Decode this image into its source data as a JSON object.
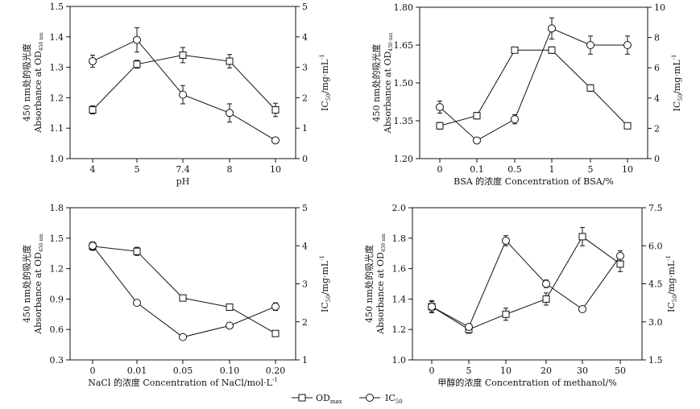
{
  "legend": {
    "od_label": "OD",
    "od_sub": "max",
    "ic_label": "IC",
    "ic_sub": "50"
  },
  "chart_data": [
    {
      "type": "line",
      "xlabel": "pH",
      "ylabel_cn": "450 nm处的吸光度",
      "ylabel_en": "Absorbance at OD",
      "ylabel_en_sub": "450 nm",
      "y2label": "IC",
      "y2label_sub": "50",
      "y2label_tail": "/mg·mL",
      "y2label_sup": "-1",
      "categories": [
        "4",
        "5",
        "7.4",
        "8",
        "10"
      ],
      "ylim": [
        1.0,
        1.5
      ],
      "yticks": [
        "1.0",
        "1.1",
        "1.2",
        "1.3",
        "1.4",
        "1.5"
      ],
      "y2lim": [
        0,
        5
      ],
      "y2ticks": [
        "0",
        "1",
        "2",
        "3",
        "4",
        "5"
      ],
      "series": [
        {
          "axis": "left",
          "marker": "square",
          "values": [
            1.16,
            1.31,
            1.34,
            1.32,
            1.16
          ],
          "err": [
            0.013,
            0.013,
            0.025,
            0.022,
            0.022
          ]
        },
        {
          "axis": "right",
          "marker": "circle",
          "values": [
            3.2,
            3.9,
            2.1,
            1.5,
            0.6
          ],
          "err": [
            0.2,
            0.4,
            0.3,
            0.3,
            0
          ]
        }
      ]
    },
    {
      "type": "line",
      "xlabel": "BSA 的浓度 Concentration of BSA/%",
      "ylabel_cn": "450 nm处的吸光度",
      "ylabel_en": "Absorbance at OD",
      "ylabel_en_sub": "450 nm",
      "y2label": "IC",
      "y2label_sub": "50",
      "y2label_tail": "/mg·mL",
      "y2label_sup": "-1",
      "categories": [
        "0",
        "0.1",
        "0.5",
        "1",
        "5",
        "10"
      ],
      "ylim": [
        1.2,
        1.8
      ],
      "yticks": [
        "1.20",
        "1.35",
        "1.50",
        "1.65",
        "1.80"
      ],
      "y2lim": [
        0,
        10
      ],
      "y2ticks": [
        "0",
        "2",
        "4",
        "6",
        "8",
        "10"
      ],
      "series": [
        {
          "axis": "left",
          "marker": "square",
          "values": [
            1.33,
            1.37,
            1.63,
            1.63,
            1.48,
            1.33
          ],
          "err": [
            0.013,
            0.013,
            0,
            0.013,
            0.013,
            0
          ]
        },
        {
          "axis": "right",
          "marker": "circle",
          "values": [
            3.4,
            1.2,
            2.6,
            8.6,
            7.5,
            7.5
          ],
          "err": [
            0.4,
            0,
            0.3,
            0.7,
            0.6,
            0.6
          ]
        }
      ]
    },
    {
      "type": "line",
      "xlabel": "NaCl 的浓度 Concentration of NaCl/mol·L",
      "xlabel_sup": "-1",
      "ylabel_cn": "450 nm处的吸光度",
      "ylabel_en": "Absorbance at OD",
      "ylabel_en_sub": "450 nm",
      "y2label": "IC",
      "y2label_sub": "50",
      "y2label_tail": "/mg·mL",
      "y2label_sup": "-1",
      "categories": [
        "0",
        "0.01",
        "0.05",
        "0.10",
        "0.20"
      ],
      "ylim": [
        0.3,
        1.8
      ],
      "yticks": [
        "0.3",
        "0.6",
        "0.9",
        "1.2",
        "1.5",
        "1.8"
      ],
      "y2lim": [
        1,
        5
      ],
      "y2ticks": [
        "1",
        "2",
        "3",
        "4",
        "5"
      ],
      "series": [
        {
          "axis": "left",
          "marker": "square",
          "values": [
            1.42,
            1.37,
            0.91,
            0.82,
            0.56
          ],
          "err": [
            0.04,
            0.04,
            0.03,
            0,
            0
          ]
        },
        {
          "axis": "right",
          "marker": "circle",
          "values": [
            4.0,
            2.5,
            1.6,
            1.9,
            2.4
          ],
          "err": [
            0.1,
            0,
            0,
            0,
            0.1
          ]
        }
      ]
    },
    {
      "type": "line",
      "xlabel": "甲醇的浓度 Concentration of methanol/%",
      "ylabel_cn": "450 nm处的吸光度",
      "ylabel_en": "Absorbance at OD",
      "ylabel_en_sub": "450 nm",
      "y2label": "IC",
      "y2label_sub": "50",
      "y2label_tail": "/mg·mL",
      "y2label_sup": "-1",
      "categories": [
        "0",
        "5",
        "10",
        "20",
        "30",
        "50"
      ],
      "ylim": [
        1.0,
        2.0
      ],
      "yticks": [
        "1.0",
        "1.2",
        "1.4",
        "1.6",
        "1.8",
        "2.0"
      ],
      "y2lim": [
        1.5,
        7.5
      ],
      "y2ticks": [
        "1.5",
        "3.0",
        "4.5",
        "6.0",
        "7.5"
      ],
      "series": [
        {
          "axis": "left",
          "marker": "square",
          "values": [
            1.35,
            1.2,
            1.3,
            1.4,
            1.81,
            1.63
          ],
          "err": [
            0.04,
            0.025,
            0.04,
            0.04,
            0.06,
            0.05
          ]
        },
        {
          "axis": "right",
          "marker": "circle",
          "values": [
            3.6,
            2.8,
            6.2,
            4.5,
            3.5,
            5.6
          ],
          "err": [
            0.2,
            0,
            0.2,
            0.15,
            0.1,
            0.2
          ]
        }
      ]
    }
  ]
}
